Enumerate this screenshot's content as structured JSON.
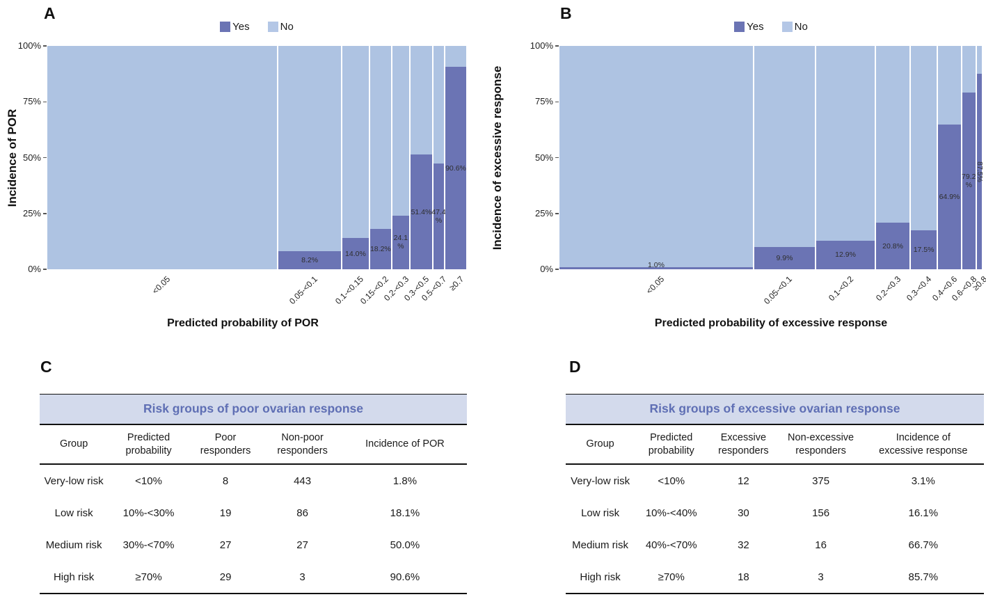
{
  "colors": {
    "yes_fill": "#6b74b4",
    "no_fill": "#aec3e2",
    "legend_no_swatch": "#b4c7e6",
    "table_title_text": "#5f6fb4",
    "table_title_bg": "#d3daec"
  },
  "chart_data": [
    {
      "id": "por",
      "type": "bar",
      "subtype": "stacked-mosaic-100pct",
      "panel_letter": "A",
      "xlabel": "Predicted probability of POR",
      "ylabel": "Incidence of POR",
      "legend": [
        "Yes",
        "No"
      ],
      "legend_position": "top-center",
      "yticks": [
        "100%",
        "75%",
        "50%",
        "25%",
        "0%"
      ],
      "ylim": [
        0,
        100
      ],
      "categories": [
        "<0.05",
        "0.05-<0.1",
        "0.1-<0.15",
        "0.15-<0.2",
        "0.2-<0.3",
        "0.3-<0.5",
        "0.5-<0.7",
        "≥0.7"
      ],
      "incidence_pct": [
        0,
        8.2,
        14.0,
        18.2,
        24.1,
        51.4,
        47.4,
        90.6
      ],
      "bar_label_lines": [
        [],
        [
          "8.2%"
        ],
        [
          "14.0%"
        ],
        [
          "18.2%"
        ],
        [
          "24.1",
          "%"
        ],
        [
          "51.4%"
        ],
        [
          "47.4",
          "%"
        ],
        [
          "90.6%"
        ]
      ],
      "width_fractions": [
        0.55,
        0.152,
        0.066,
        0.053,
        0.043,
        0.055,
        0.028,
        0.053
      ]
    },
    {
      "id": "exc",
      "type": "bar",
      "subtype": "stacked-mosaic-100pct",
      "panel_letter": "B",
      "xlabel": "Predicted probability of excessive response",
      "ylabel": "Incidence of excessive response",
      "legend": [
        "Yes",
        "No"
      ],
      "legend_position": "top-center",
      "yticks": [
        "100%",
        "75%",
        "50%",
        "25%",
        "0%"
      ],
      "ylim": [
        0,
        100
      ],
      "categories": [
        "<0.05",
        "0.05-<0.1",
        "0.1-<0.2",
        "0.2-<0.3",
        "0.3-<0.4",
        "0.4-<0.6",
        "0.6-<0.8",
        "≥0.8"
      ],
      "incidence_pct": [
        1.0,
        9.9,
        12.9,
        20.8,
        17.5,
        64.9,
        79.2,
        87.5
      ],
      "bar_label_lines": [
        [
          "1.0%"
        ],
        [
          "9.9%"
        ],
        [
          "12.9%"
        ],
        [
          "20.8%"
        ],
        [
          "17.5%"
        ],
        [
          "64.9%"
        ],
        [
          "79.2",
          "%"
        ],
        [
          "87.5%"
        ]
      ],
      "width_fractions": [
        0.459,
        0.146,
        0.141,
        0.082,
        0.064,
        0.057,
        0.034,
        0.016
      ]
    }
  ],
  "tables": [
    {
      "id": "por-risk",
      "panel_letter": "C",
      "title": "Risk groups of poor ovarian response",
      "col_widths": [
        "16%",
        "19%",
        "17%",
        "19%",
        "29%"
      ],
      "headers": [
        [
          "Group"
        ],
        [
          "Predicted",
          "probability"
        ],
        [
          "Poor",
          "responders"
        ],
        [
          "Non-poor",
          "responders"
        ],
        [
          "Incidence of POR"
        ]
      ],
      "rows": [
        [
          "Very-low risk",
          "<10%",
          "8",
          "443",
          "1.8%"
        ],
        [
          "Low risk",
          "10%-<30%",
          "19",
          "86",
          "18.1%"
        ],
        [
          "Medium risk",
          "30%-<70%",
          "27",
          "27",
          "50.0%"
        ],
        [
          "High risk",
          "≥70%",
          "29",
          "3",
          "90.6%"
        ]
      ]
    },
    {
      "id": "excessive-risk",
      "panel_letter": "D",
      "title": "Risk groups of excessive ovarian response",
      "col_widths": [
        "16.5%",
        "17.5%",
        "17%",
        "20%",
        "29%"
      ],
      "headers": [
        [
          "Group"
        ],
        [
          "Predicted",
          "probability"
        ],
        [
          "Excessive",
          "responders"
        ],
        [
          "Non-excessive",
          "responders"
        ],
        [
          "Incidence of",
          "excessive response"
        ]
      ],
      "rows": [
        [
          "Very-low risk",
          "<10%",
          "12",
          "375",
          "3.1%"
        ],
        [
          "Low risk",
          "10%-<40%",
          "30",
          "156",
          "16.1%"
        ],
        [
          "Medium risk",
          "40%-<70%",
          "32",
          "16",
          "66.7%"
        ],
        [
          "High risk",
          "≥70%",
          "18",
          "3",
          "85.7%"
        ]
      ]
    }
  ]
}
